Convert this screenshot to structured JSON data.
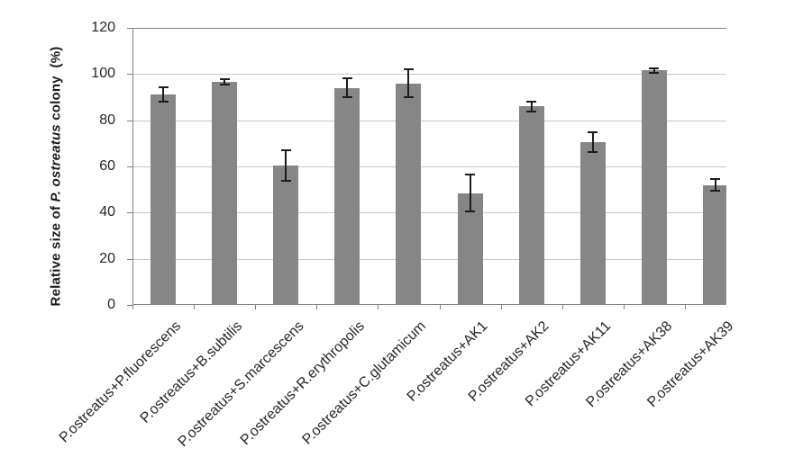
{
  "chart": {
    "y_axis_title": {
      "prefix": "Relative size of ",
      "italic": "P. ostreatus",
      "suffix": " colony  (%)"
    }
  },
  "chart_data": {
    "type": "bar",
    "title": "",
    "xlabel": "",
    "ylabel": "Relative size of P. ostreatus colony (%)",
    "ylim": [
      0,
      120
    ],
    "yticks": [
      0,
      20,
      40,
      60,
      80,
      100,
      120
    ],
    "grid": true,
    "legend": false,
    "error_bars": true,
    "categories": [
      "P.ostreatus+P.fluorescens",
      "P.ostreatus+B.subtilis",
      "P.ostreatus+S.marcescens",
      "P.ostreatus+R.erythropolis",
      "P.ostreatus+C.glutamicum",
      "P.ostreatus+AK1",
      "P.ostreatus+AK2",
      "P.ostreatus+AK11",
      "P.ostreatus+AK38",
      "P.ostreatus+AK39"
    ],
    "values": [
      91,
      96.5,
      60.5,
      94,
      96,
      48.5,
      86,
      70.5,
      101.5,
      52
    ],
    "errors": [
      3.5,
      1.5,
      7,
      4.5,
      6.5,
      8.5,
      2.5,
      4.7,
      1.5,
      3
    ],
    "colors": {
      "bar": "#868686",
      "axis": "#808080",
      "gridline": "#c8c8c8",
      "error_bar": "#1c1c1c",
      "tick_label": "#262626"
    }
  }
}
